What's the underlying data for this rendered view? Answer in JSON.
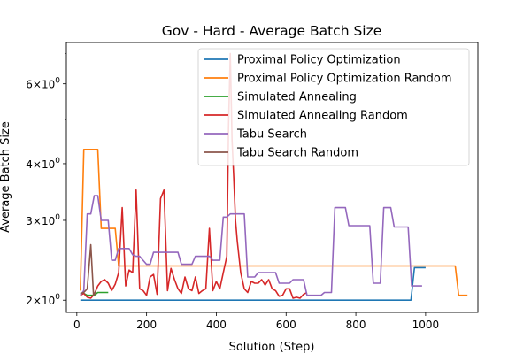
{
  "chart_data": {
    "type": "line",
    "title": "Gov - Hard - Average Batch Size",
    "xlabel": "Solution (Step)",
    "ylabel": "Average Batch Size",
    "xlim": [
      -30,
      1150
    ],
    "ylim": [
      1.88,
      7.4
    ],
    "yscale": "log",
    "grid": false,
    "legend_position": "top-right",
    "x_ticks": [
      {
        "value": 0,
        "label": "0"
      },
      {
        "value": 200,
        "label": "200"
      },
      {
        "value": 400,
        "label": "400"
      },
      {
        "value": 600,
        "label": "600"
      },
      {
        "value": 800,
        "label": "800"
      },
      {
        "value": 1000,
        "label": "1000"
      }
    ],
    "y_major_ticks": [
      {
        "value": 2,
        "base": "2",
        "mul": "×",
        "ten": "10",
        "exp": "0"
      },
      {
        "value": 3,
        "base": "3",
        "mul": "×",
        "ten": "10",
        "exp": "0"
      },
      {
        "value": 4,
        "base": "4",
        "mul": "×",
        "ten": "10",
        "exp": "0"
      },
      {
        "value": 6,
        "base": "6",
        "mul": "×",
        "ten": "10",
        "exp": "0"
      }
    ],
    "y_minor_ticks": [
      5,
      7
    ],
    "series": [
      {
        "name": "Proximal Policy Optimization",
        "color": "#1f77b4",
        "points": [
          [
            10,
            2.0
          ],
          [
            958,
            2.0
          ],
          [
            968,
            2.36
          ],
          [
            1000,
            2.36
          ]
        ]
      },
      {
        "name": "Proximal Policy Optimization Random",
        "color": "#ff7f0e",
        "points": [
          [
            10,
            2.1
          ],
          [
            20,
            4.3
          ],
          [
            60,
            4.3
          ],
          [
            70,
            2.88
          ],
          [
            110,
            2.88
          ],
          [
            120,
            2.38
          ],
          [
            1085,
            2.38
          ],
          [
            1095,
            2.05
          ],
          [
            1120,
            2.05
          ]
        ]
      },
      {
        "name": "Simulated Annealing",
        "color": "#2ca02c",
        "points": [
          [
            10,
            2.07
          ],
          [
            20,
            2.07
          ],
          [
            30,
            2.05
          ],
          [
            50,
            2.05
          ],
          [
            60,
            2.08
          ],
          [
            90,
            2.08
          ]
        ]
      },
      {
        "name": "Simulated Annealing Random",
        "color": "#d62728",
        "points": [
          [
            10,
            2.05
          ],
          [
            20,
            2.07
          ],
          [
            30,
            2.03
          ],
          [
            40,
            2.02
          ],
          [
            50,
            2.06
          ],
          [
            60,
            2.15
          ],
          [
            70,
            2.2
          ],
          [
            80,
            2.22
          ],
          [
            90,
            2.18
          ],
          [
            100,
            2.1
          ],
          [
            110,
            2.17
          ],
          [
            120,
            2.3
          ],
          [
            130,
            3.2
          ],
          [
            140,
            2.15
          ],
          [
            150,
            2.33
          ],
          [
            160,
            2.3
          ],
          [
            170,
            3.5
          ],
          [
            180,
            2.12
          ],
          [
            190,
            2.1
          ],
          [
            200,
            2.05
          ],
          [
            210,
            2.25
          ],
          [
            220,
            2.28
          ],
          [
            230,
            2.06
          ],
          [
            240,
            3.35
          ],
          [
            250,
            3.5
          ],
          [
            260,
            2.1
          ],
          [
            270,
            2.35
          ],
          [
            280,
            2.22
          ],
          [
            290,
            2.12
          ],
          [
            300,
            2.07
          ],
          [
            310,
            2.25
          ],
          [
            320,
            2.12
          ],
          [
            330,
            2.1
          ],
          [
            340,
            2.25
          ],
          [
            350,
            2.07
          ],
          [
            360,
            2.1
          ],
          [
            370,
            2.12
          ],
          [
            380,
            2.88
          ],
          [
            390,
            2.1
          ],
          [
            400,
            2.2
          ],
          [
            410,
            2.12
          ],
          [
            420,
            2.3
          ],
          [
            430,
            2.5
          ],
          [
            435,
            4.8
          ],
          [
            440,
            7.0
          ],
          [
            445,
            4.5
          ],
          [
            450,
            3.7
          ],
          [
            455,
            3.0
          ],
          [
            460,
            2.7
          ],
          [
            470,
            2.3
          ],
          [
            480,
            2.12
          ],
          [
            490,
            2.08
          ],
          [
            500,
            2.2
          ],
          [
            510,
            2.18
          ],
          [
            520,
            2.18
          ],
          [
            530,
            2.22
          ],
          [
            540,
            2.16
          ],
          [
            550,
            2.22
          ],
          [
            560,
            2.12
          ],
          [
            570,
            2.1
          ],
          [
            580,
            2.04
          ],
          [
            590,
            2.05
          ],
          [
            600,
            2.12
          ],
          [
            610,
            2.12
          ],
          [
            620,
            2.02
          ],
          [
            630,
            2.03
          ],
          [
            640,
            2.02
          ],
          [
            650,
            2.06
          ],
          [
            660,
            2.08
          ]
        ]
      },
      {
        "name": "Tabu Search",
        "color": "#9467bd",
        "points": [
          [
            10,
            2.05
          ],
          [
            20,
            2.1
          ],
          [
            30,
            3.1
          ],
          [
            40,
            3.1
          ],
          [
            50,
            3.4
          ],
          [
            60,
            3.4
          ],
          [
            70,
            3.0
          ],
          [
            90,
            3.0
          ],
          [
            100,
            2.45
          ],
          [
            110,
            2.45
          ],
          [
            120,
            2.6
          ],
          [
            150,
            2.6
          ],
          [
            160,
            2.52
          ],
          [
            170,
            2.5
          ],
          [
            180,
            2.5
          ],
          [
            190,
            2.45
          ],
          [
            200,
            2.4
          ],
          [
            210,
            2.4
          ],
          [
            220,
            2.55
          ],
          [
            290,
            2.55
          ],
          [
            300,
            2.4
          ],
          [
            330,
            2.4
          ],
          [
            340,
            2.5
          ],
          [
            380,
            2.5
          ],
          [
            390,
            2.45
          ],
          [
            410,
            2.45
          ],
          [
            420,
            3.05
          ],
          [
            430,
            3.05
          ],
          [
            440,
            3.1
          ],
          [
            480,
            3.1
          ],
          [
            490,
            2.25
          ],
          [
            510,
            2.25
          ],
          [
            520,
            2.3
          ],
          [
            570,
            2.3
          ],
          [
            580,
            2.18
          ],
          [
            610,
            2.18
          ],
          [
            620,
            2.22
          ],
          [
            650,
            2.22
          ],
          [
            660,
            2.05
          ],
          [
            700,
            2.05
          ],
          [
            710,
            2.08
          ],
          [
            730,
            2.08
          ],
          [
            740,
            3.2
          ],
          [
            770,
            3.2
          ],
          [
            780,
            2.92
          ],
          [
            840,
            2.92
          ],
          [
            850,
            2.18
          ],
          [
            870,
            2.18
          ],
          [
            880,
            3.2
          ],
          [
            900,
            3.2
          ],
          [
            910,
            2.9
          ],
          [
            950,
            2.9
          ],
          [
            960,
            2.15
          ],
          [
            990,
            2.15
          ]
        ]
      },
      {
        "name": "Tabu Search Random",
        "color": "#8c564b",
        "points": [
          [
            10,
            2.07
          ],
          [
            20,
            2.08
          ],
          [
            30,
            2.12
          ],
          [
            40,
            2.65
          ],
          [
            48,
            2.05
          ],
          [
            55,
            2.1
          ]
        ]
      }
    ]
  }
}
